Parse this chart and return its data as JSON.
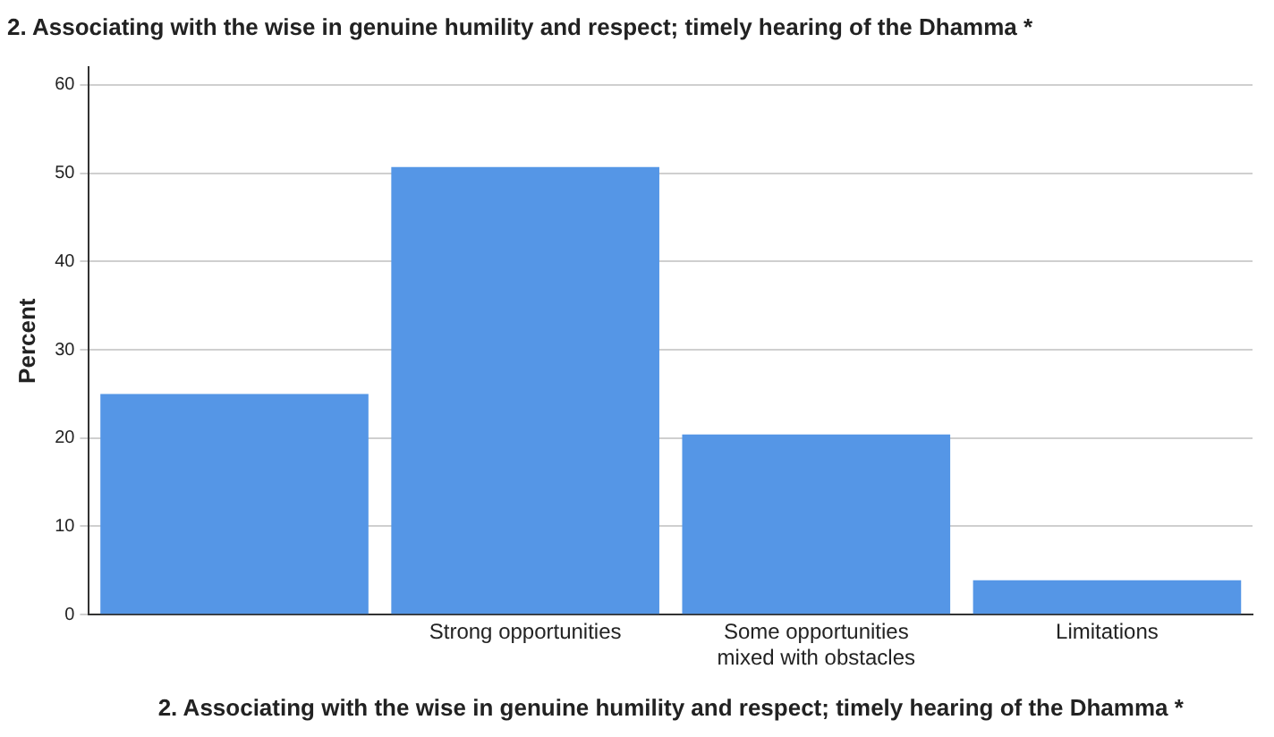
{
  "chart_data": {
    "type": "bar",
    "title": "2. Associating with the wise in genuine humility and respect; timely hearing of the Dhamma *",
    "xlabel": "2. Associating with the wise in genuine humility and respect; timely hearing of the Dhamma *",
    "ylabel": "Percent",
    "categories": [
      null,
      "Strong opportunities",
      "Some opportunities mixed with obstacles",
      "Limitations"
    ],
    "values": [
      25.0,
      50.7,
      20.4,
      3.9
    ],
    "color": "#5596e6",
    "ylim": [
      0,
      62
    ],
    "yticks": [
      0,
      10,
      20,
      30,
      40,
      50,
      60
    ],
    "grid": "y"
  }
}
